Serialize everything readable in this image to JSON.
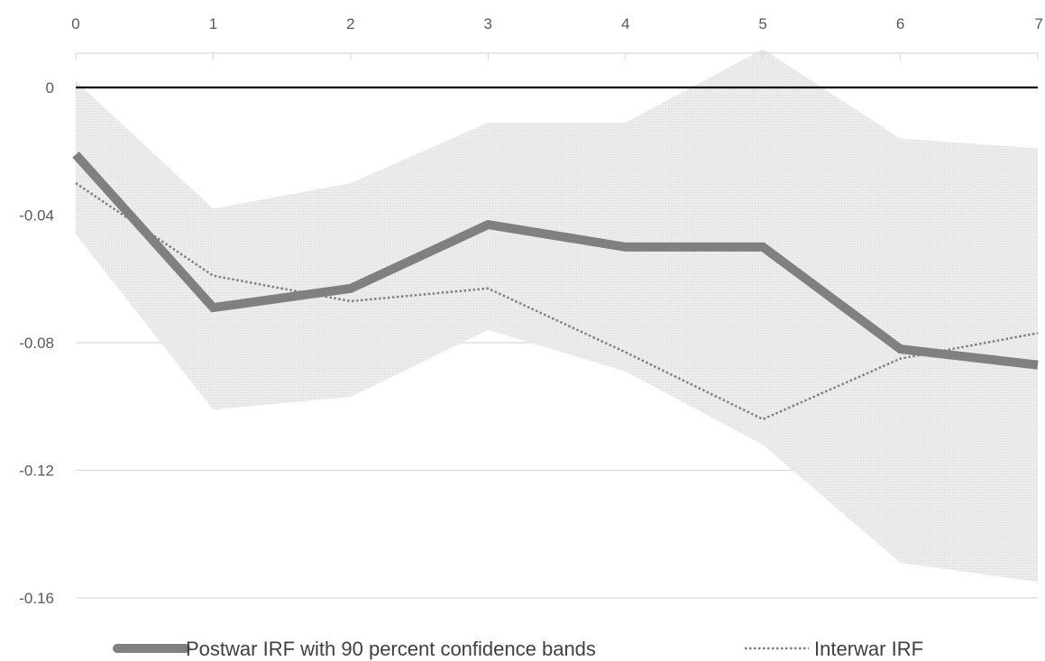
{
  "chart_data": {
    "type": "line",
    "title": "",
    "xlabel": "",
    "ylabel": "",
    "x": [
      0,
      1,
      2,
      3,
      4,
      5,
      6,
      7
    ],
    "x_ticks": [
      "0",
      "1",
      "2",
      "3",
      "4",
      "5",
      "6",
      "7"
    ],
    "x_axis_position": "top",
    "xlim": [
      0,
      7
    ],
    "ylim": [
      -0.16,
      0.01
    ],
    "y_ticks": [
      0,
      -0.04,
      -0.08,
      -0.12,
      -0.16
    ],
    "y_tick_labels": [
      "0",
      "-0.04",
      "-0.08",
      "-0.12",
      "-0.16"
    ],
    "grid": true,
    "zero_line": true,
    "band": {
      "upper": [
        0.002,
        -0.038,
        -0.03,
        -0.011,
        -0.011,
        0.012,
        -0.016,
        -0.019
      ],
      "lower": [
        -0.046,
        -0.101,
        -0.097,
        -0.076,
        -0.089,
        -0.112,
        -0.149,
        -0.155
      ],
      "color": "#e6e6e6"
    },
    "series": [
      {
        "name": "Postwar IRF with 90 percent confidence bands",
        "values": [
          -0.021,
          -0.069,
          -0.063,
          -0.043,
          -0.05,
          -0.05,
          -0.082,
          -0.087
        ],
        "style": "solid",
        "color": "#808080"
      },
      {
        "name": "Interwar IRF",
        "values": [
          -0.03,
          -0.059,
          -0.067,
          -0.063,
          -0.083,
          -0.104,
          -0.085,
          -0.077
        ],
        "style": "dotted",
        "color": "#7f7f7f"
      }
    ],
    "legend": {
      "position": "bottom"
    },
    "colors": {
      "grid": "#d9d9d9",
      "zero_line": "#000000",
      "tick_text": "#595959",
      "legend_text": "#404040"
    }
  }
}
